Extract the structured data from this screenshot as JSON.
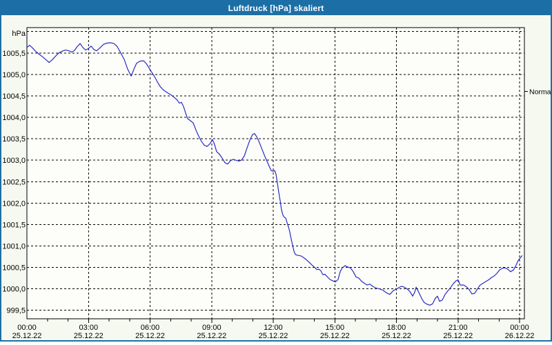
{
  "window": {
    "title": "Luftdruck [hPa] skaliert"
  },
  "chart_data": {
    "type": "line",
    "title": "Luftdruck [hPa] skaliert",
    "ylabel": "hPa",
    "unit_label": "hPa",
    "series_name": "Luftdruck",
    "series_color": "#2828c8",
    "grid": {
      "style": "dashed",
      "h_step_hpa": 0.5,
      "v_step_hours": 3,
      "color": "#000000"
    },
    "legend_position": "none",
    "right_axis_marker": {
      "label": "Normal",
      "value": 1004.6
    },
    "x_axis": {
      "xlim_hours": [
        0,
        24.25
      ],
      "minor_tick_every_hours": 1,
      "ticks": [
        {
          "hours": 0,
          "time": "00:00",
          "date": "25.12.22"
        },
        {
          "hours": 3,
          "time": "03:00",
          "date": "25.12.22"
        },
        {
          "hours": 6,
          "time": "06:00",
          "date": "25.12.22"
        },
        {
          "hours": 9,
          "time": "09:00",
          "date": "25.12.22"
        },
        {
          "hours": 12,
          "time": "12:00",
          "date": "25.12.22"
        },
        {
          "hours": 15,
          "time": "15:00",
          "date": "25.12.22"
        },
        {
          "hours": 18,
          "time": "18:00",
          "date": "25.12.22"
        },
        {
          "hours": 21,
          "time": "21:00",
          "date": "25.12.22"
        },
        {
          "hours": 24,
          "time": "00:00",
          "date": "26.12.22"
        }
      ]
    },
    "y_axis": {
      "ylim": [
        999.3,
        1006.1
      ],
      "grid_values": [
        1006.0,
        1005.5,
        1005.0,
        1004.5,
        1004.0,
        1003.5,
        1003.0,
        1002.5,
        1002.0,
        1001.5,
        1001.0,
        1000.5,
        1000.0,
        999.5
      ],
      "ticks": [
        {
          "value": 1005.5,
          "label": "1005,5"
        },
        {
          "value": 1005.0,
          "label": "1005,0"
        },
        {
          "value": 1004.5,
          "label": "1004,5"
        },
        {
          "value": 1004.0,
          "label": "1004,0"
        },
        {
          "value": 1003.5,
          "label": "1003,5"
        },
        {
          "value": 1003.0,
          "label": "1003,0"
        },
        {
          "value": 1002.5,
          "label": "1002,5"
        },
        {
          "value": 1002.0,
          "label": "1002,0"
        },
        {
          "value": 1001.5,
          "label": "1001,5"
        },
        {
          "value": 1001.0,
          "label": "1001,0"
        },
        {
          "value": 1000.5,
          "label": "1000,5"
        },
        {
          "value": 1000.0,
          "label": "1000,0"
        },
        {
          "value": 999.5,
          "label": "999,5"
        }
      ]
    },
    "points": [
      [
        0.0,
        1005.63
      ],
      [
        0.13,
        1005.68
      ],
      [
        0.27,
        1005.62
      ],
      [
        0.4,
        1005.55
      ],
      [
        0.57,
        1005.48
      ],
      [
        0.74,
        1005.42
      ],
      [
        0.91,
        1005.35
      ],
      [
        1.08,
        1005.28
      ],
      [
        1.21,
        1005.33
      ],
      [
        1.38,
        1005.42
      ],
      [
        1.55,
        1005.5
      ],
      [
        1.71,
        1005.54
      ],
      [
        1.88,
        1005.57
      ],
      [
        2.05,
        1005.55
      ],
      [
        2.18,
        1005.52
      ],
      [
        2.32,
        1005.56
      ],
      [
        2.45,
        1005.65
      ],
      [
        2.59,
        1005.72
      ],
      [
        2.72,
        1005.63
      ],
      [
        2.86,
        1005.57
      ],
      [
        2.99,
        1005.6
      ],
      [
        3.13,
        1005.66
      ],
      [
        3.26,
        1005.58
      ],
      [
        3.39,
        1005.55
      ],
      [
        3.56,
        1005.62
      ],
      [
        3.73,
        1005.7
      ],
      [
        3.9,
        1005.73
      ],
      [
        4.07,
        1005.74
      ],
      [
        4.24,
        1005.72
      ],
      [
        4.4,
        1005.65
      ],
      [
        4.57,
        1005.5
      ],
      [
        4.74,
        1005.35
      ],
      [
        4.91,
        1005.12
      ],
      [
        5.08,
        1004.96
      ],
      [
        5.21,
        1005.12
      ],
      [
        5.34,
        1005.26
      ],
      [
        5.51,
        1005.31
      ],
      [
        5.68,
        1005.32
      ],
      [
        5.82,
        1005.25
      ],
      [
        5.95,
        1005.15
      ],
      [
        6.08,
        1005.05
      ],
      [
        6.22,
        1004.95
      ],
      [
        6.35,
        1004.83
      ],
      [
        6.49,
        1004.72
      ],
      [
        6.62,
        1004.65
      ],
      [
        6.76,
        1004.6
      ],
      [
        6.89,
        1004.56
      ],
      [
        7.03,
        1004.52
      ],
      [
        7.16,
        1004.47
      ],
      [
        7.29,
        1004.42
      ],
      [
        7.43,
        1004.33
      ],
      [
        7.53,
        1004.35
      ],
      [
        7.63,
        1004.25
      ],
      [
        7.73,
        1004.1
      ],
      [
        7.83,
        1003.97
      ],
      [
        7.97,
        1003.92
      ],
      [
        8.1,
        1003.87
      ],
      [
        8.24,
        1003.7
      ],
      [
        8.37,
        1003.56
      ],
      [
        8.5,
        1003.44
      ],
      [
        8.64,
        1003.35
      ],
      [
        8.77,
        1003.32
      ],
      [
        8.91,
        1003.38
      ],
      [
        9.04,
        1003.48
      ],
      [
        9.14,
        1003.37
      ],
      [
        9.24,
        1003.2
      ],
      [
        9.38,
        1003.14
      ],
      [
        9.51,
        1003.05
      ],
      [
        9.65,
        1002.94
      ],
      [
        9.78,
        1002.91
      ],
      [
        9.92,
        1002.99
      ],
      [
        10.05,
        1003.02
      ],
      [
        10.18,
        1003.0
      ],
      [
        10.32,
        1002.98
      ],
      [
        10.45,
        1003.0
      ],
      [
        10.59,
        1003.1
      ],
      [
        10.72,
        1003.28
      ],
      [
        10.86,
        1003.47
      ],
      [
        10.99,
        1003.6
      ],
      [
        11.09,
        1003.62
      ],
      [
        11.19,
        1003.55
      ],
      [
        11.29,
        1003.45
      ],
      [
        11.39,
        1003.33
      ],
      [
        11.5,
        1003.2
      ],
      [
        11.6,
        1003.08
      ],
      [
        11.7,
        1002.97
      ],
      [
        11.8,
        1002.86
      ],
      [
        11.9,
        1002.76
      ],
      [
        12.0,
        1002.74
      ],
      [
        12.07,
        1002.76
      ],
      [
        12.13,
        1002.68
      ],
      [
        12.2,
        1002.48
      ],
      [
        12.27,
        1002.25
      ],
      [
        12.34,
        1002.05
      ],
      [
        12.4,
        1001.85
      ],
      [
        12.47,
        1001.72
      ],
      [
        12.54,
        1001.67
      ],
      [
        12.61,
        1001.65
      ],
      [
        12.67,
        1001.55
      ],
      [
        12.74,
        1001.45
      ],
      [
        12.81,
        1001.32
      ],
      [
        12.87,
        1001.17
      ],
      [
        12.94,
        1001.02
      ],
      [
        13.01,
        1000.88
      ],
      [
        13.08,
        1000.8
      ],
      [
        13.21,
        1000.78
      ],
      [
        13.34,
        1000.77
      ],
      [
        13.48,
        1000.73
      ],
      [
        13.61,
        1000.68
      ],
      [
        13.75,
        1000.62
      ],
      [
        13.88,
        1000.56
      ],
      [
        14.02,
        1000.5
      ],
      [
        14.12,
        1000.45
      ],
      [
        14.22,
        1000.46
      ],
      [
        14.32,
        1000.42
      ],
      [
        14.42,
        1000.33
      ],
      [
        14.52,
        1000.34
      ],
      [
        14.62,
        1000.29
      ],
      [
        14.76,
        1000.22
      ],
      [
        14.89,
        1000.19
      ],
      [
        15.03,
        1000.16
      ],
      [
        15.16,
        1000.22
      ],
      [
        15.26,
        1000.4
      ],
      [
        15.36,
        1000.49
      ],
      [
        15.5,
        1000.54
      ],
      [
        15.63,
        1000.51
      ],
      [
        15.76,
        1000.49
      ],
      [
        15.9,
        1000.4
      ],
      [
        16.03,
        1000.28
      ],
      [
        16.17,
        1000.25
      ],
      [
        16.3,
        1000.18
      ],
      [
        16.44,
        1000.13
      ],
      [
        16.57,
        1000.09
      ],
      [
        16.71,
        1000.11
      ],
      [
        16.84,
        1000.06
      ],
      [
        17.01,
        1000.02
      ],
      [
        17.18,
        1000.0
      ],
      [
        17.34,
        999.97
      ],
      [
        17.51,
        999.91
      ],
      [
        17.68,
        999.87
      ],
      [
        17.85,
        999.96
      ],
      [
        17.98,
        999.99
      ],
      [
        18.12,
        1000.03
      ],
      [
        18.25,
        1000.06
      ],
      [
        18.39,
        1000.04
      ],
      [
        18.52,
        1000.0
      ],
      [
        18.66,
        999.94
      ],
      [
        18.79,
        999.83
      ],
      [
        18.89,
        999.92
      ],
      [
        18.96,
        1000.04
      ],
      [
        19.06,
        999.95
      ],
      [
        19.16,
        999.85
      ],
      [
        19.26,
        999.75
      ],
      [
        19.36,
        999.68
      ],
      [
        19.5,
        999.64
      ],
      [
        19.63,
        999.62
      ],
      [
        19.76,
        999.65
      ],
      [
        19.9,
        999.78
      ],
      [
        20.0,
        999.83
      ],
      [
        20.1,
        999.71
      ],
      [
        20.24,
        999.74
      ],
      [
        20.37,
        999.87
      ],
      [
        20.5,
        999.95
      ],
      [
        20.64,
        1000.03
      ],
      [
        20.77,
        1000.12
      ],
      [
        20.91,
        1000.19
      ],
      [
        21.01,
        1000.21
      ],
      [
        21.11,
        1000.09
      ],
      [
        21.28,
        1000.09
      ],
      [
        21.41,
        1000.05
      ],
      [
        21.55,
        999.98
      ],
      [
        21.68,
        999.88
      ],
      [
        21.82,
        999.9
      ],
      [
        21.95,
        1000.0
      ],
      [
        22.08,
        1000.09
      ],
      [
        22.22,
        1000.13
      ],
      [
        22.35,
        1000.17
      ],
      [
        22.49,
        1000.21
      ],
      [
        22.62,
        1000.26
      ],
      [
        22.76,
        1000.3
      ],
      [
        22.89,
        1000.36
      ],
      [
        23.03,
        1000.44
      ],
      [
        23.16,
        1000.48
      ],
      [
        23.29,
        1000.49
      ],
      [
        23.43,
        1000.46
      ],
      [
        23.56,
        1000.4
      ],
      [
        23.7,
        1000.44
      ],
      [
        23.83,
        1000.55
      ],
      [
        23.93,
        1000.66
      ],
      [
        24.03,
        1000.72
      ],
      [
        24.13,
        1000.78
      ]
    ]
  },
  "colors": {
    "titlebar": "#1c6fa6",
    "window_border": "#1c6fa6",
    "content_background": "#f6f9f0",
    "plot_background": "#fdfef9",
    "grid": "#000000",
    "series": "#2828c8",
    "text": "#000000"
  }
}
